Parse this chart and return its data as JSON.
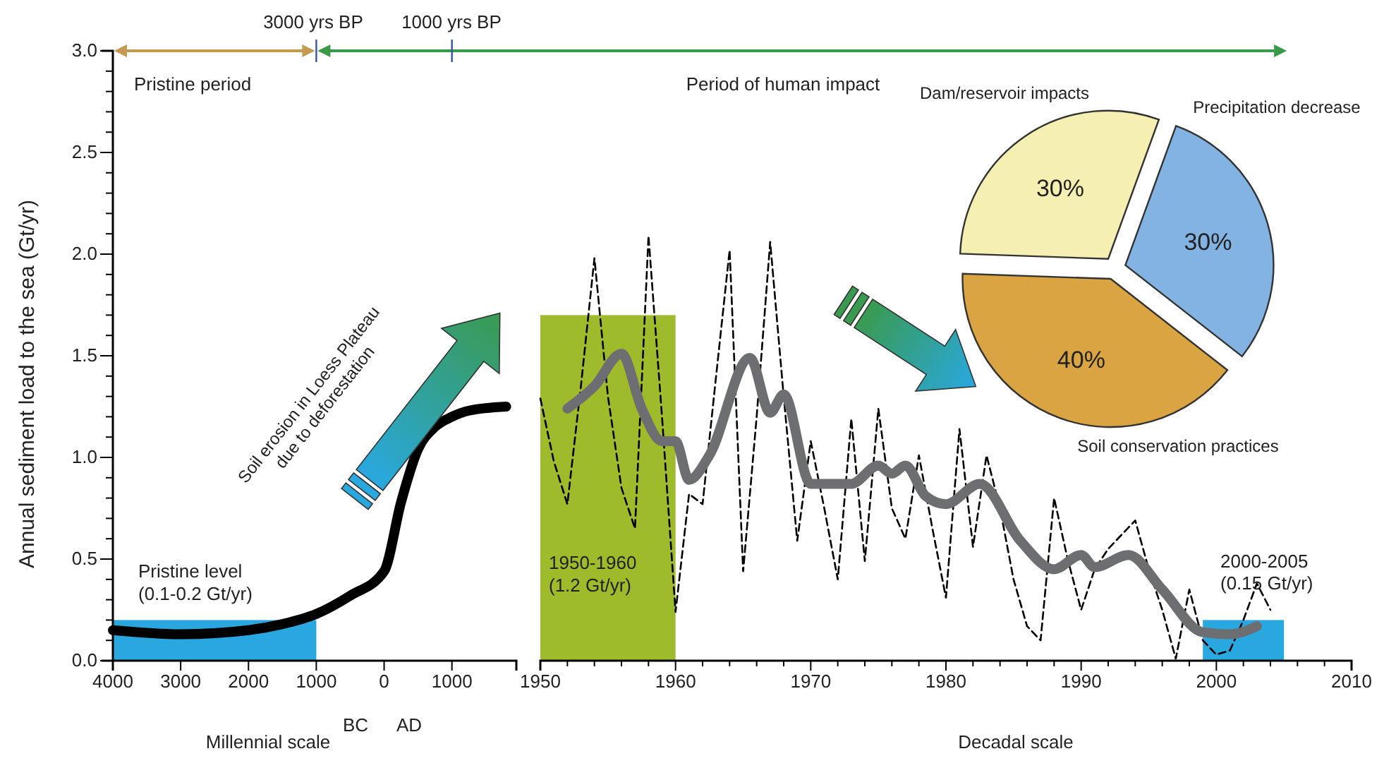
{
  "chart_data": [
    {
      "type": "line",
      "xlabel": "Millennial scale",
      "ylabel": "Annual sediment load to the sea (Gt/yr)",
      "xlim": [
        -4000,
        1950
      ],
      "ylim": [
        0,
        3
      ],
      "xticks": [
        {
          "value": -4000,
          "label": "4000"
        },
        {
          "value": -3000,
          "label": "3000"
        },
        {
          "value": -2000,
          "label": "2000"
        },
        {
          "value": -1000,
          "label": "1000"
        },
        0,
        1000
      ],
      "yticks": [
        {
          "value": 0,
          "label": "0.0"
        },
        {
          "value": 0.1,
          "label": null
        },
        {
          "value": 0.2,
          "label": null
        },
        {
          "value": 0.3,
          "label": null
        },
        {
          "value": 0.4,
          "label": null
        },
        {
          "value": 0.5,
          "label": "0.5"
        },
        {
          "value": 0.6,
          "label": null
        },
        {
          "value": 0.7,
          "label": null
        },
        {
          "value": 0.8,
          "label": null
        },
        {
          "value": 0.9,
          "label": null
        },
        {
          "value": 1,
          "label": "1.0"
        },
        {
          "value": 1.1,
          "label": null
        },
        {
          "value": 1.2,
          "label": null
        },
        {
          "value": 1.3,
          "label": null
        },
        {
          "value": 1.4,
          "label": null
        },
        {
          "value": 1.5,
          "label": "1.5"
        },
        {
          "value": 1.6,
          "label": null
        },
        {
          "value": 1.7,
          "label": null
        },
        {
          "value": 1.8,
          "label": null
        },
        {
          "value": 1.9,
          "label": null
        },
        {
          "value": 2,
          "label": "2.0"
        },
        {
          "value": 2.1,
          "label": null
        },
        {
          "value": 2.2,
          "label": null
        },
        {
          "value": 2.3,
          "label": null
        },
        {
          "value": 2.4,
          "label": null
        },
        {
          "value": 2.5,
          "label": "2.5"
        },
        {
          "value": 2.6,
          "label": null
        },
        {
          "value": 2.7,
          "label": null
        },
        {
          "value": 2.8,
          "label": null
        },
        {
          "value": 2.9,
          "label": null
        },
        {
          "value": 3,
          "label": "3.0"
        }
      ],
      "series": [
        {
          "type": "histogram",
          "color": "#29a8e0",
          "bins": [
            -4000,
            -1000
          ],
          "values": [
            0.2
          ]
        },
        {
          "type": "line",
          "color": "#000000",
          "line_style": "solid",
          "x": [
            -4000,
            -3000,
            -2000,
            -1500,
            -1000,
            -500,
            0,
            250,
            500,
            750,
            1000,
            1250,
            1800
          ],
          "values": [
            0.15,
            0.13,
            0.15,
            0.18,
            0.23,
            0.32,
            0.44,
            0.78,
            1.04,
            1.15,
            1.2,
            1.23,
            1.25
          ]
        }
      ],
      "annotations": [
        "3000 yrs BP",
        "1000 yrs BP",
        "Pristine period",
        "Period of human impact",
        {
          "text": "Pristine level\n(0.1-0.2 Gt/yr)",
          "x": -4000,
          "y": 0.2
        },
        "Soil erosion in Loess Plateau\ndue to deforestation",
        "BC",
        "AD"
      ]
    },
    {
      "type": "line",
      "xlabel": "Decadal scale",
      "xlim": [
        1950,
        2010
      ],
      "ylim": [
        0,
        3
      ],
      "tick_labels": "x",
      "xticks": [
        1950,
        {
          "value": 1952,
          "label": null
        },
        {
          "value": 1954,
          "label": null
        },
        {
          "value": 1956,
          "label": null
        },
        {
          "value": 1958,
          "label": null
        },
        1960,
        {
          "value": 1962,
          "label": null
        },
        {
          "value": 1964,
          "label": null
        },
        {
          "value": 1966,
          "label": null
        },
        {
          "value": 1968,
          "label": null
        },
        1970,
        {
          "value": 1972,
          "label": null
        },
        {
          "value": 1974,
          "label": null
        },
        {
          "value": 1976,
          "label": null
        },
        {
          "value": 1978,
          "label": null
        },
        1980,
        {
          "value": 1982,
          "label": null
        },
        {
          "value": 1984,
          "label": null
        },
        {
          "value": 1986,
          "label": null
        },
        {
          "value": 1988,
          "label": null
        },
        1990,
        {
          "value": 1992,
          "label": null
        },
        {
          "value": 1994,
          "label": null
        },
        {
          "value": 1996,
          "label": null
        },
        {
          "value": 1998,
          "label": null
        },
        2000,
        {
          "value": 2002,
          "label": null
        },
        {
          "value": 2004,
          "label": null
        },
        {
          "value": 2006,
          "label": null
        },
        {
          "value": 2008,
          "label": null
        },
        2010
      ],
      "series": [
        {
          "type": "histogram",
          "color": "#9dbb2a",
          "bins": [
            1950,
            1960
          ],
          "values": [
            1.7
          ]
        },
        {
          "type": "histogram",
          "color": "#29a8e0",
          "bins": [
            1999,
            2005
          ],
          "values": [
            0.2
          ]
        },
        {
          "type": "line",
          "color": "#000000",
          "line_style": "dashed",
          "x": [
            1950,
            1951,
            1952,
            1953,
            1954,
            1955,
            1956,
            1957,
            1958,
            1959,
            1960,
            1961,
            1962,
            1963,
            1964,
            1965,
            1966,
            1967,
            1968,
            1969,
            1970,
            1971,
            1972,
            1973,
            1974,
            1975,
            1976,
            1977,
            1978,
            1979,
            1980,
            1981,
            1982,
            1983,
            1984,
            1985,
            1986,
            1987,
            1988,
            1989,
            1990,
            1991,
            1992,
            1993,
            1994,
            1995,
            1996,
            1997,
            1998,
            1999,
            2000,
            2001,
            2002,
            2003,
            2004
          ],
          "values": [
            1.29,
            0.98,
            0.77,
            1.35,
            1.98,
            1.3,
            0.85,
            0.65,
            2.09,
            1.2,
            0.24,
            0.82,
            0.77,
            1.4,
            2.02,
            0.44,
            1.2,
            2.06,
            1.3,
            0.59,
            1.08,
            0.75,
            0.4,
            1.19,
            0.49,
            1.24,
            0.75,
            0.6,
            1.01,
            0.65,
            0.31,
            1.14,
            0.56,
            1.01,
            0.75,
            0.4,
            0.17,
            0.1,
            0.8,
            0.5,
            0.25,
            0.45,
            0.55,
            0.62,
            0.69,
            0.45,
            0.25,
            0.01,
            0.35,
            0.1,
            0.03,
            0.05,
            0.2,
            0.38,
            0.25
          ]
        },
        {
          "type": "line",
          "color": "#6d6e71",
          "line_style": "solid",
          "x": [
            1952,
            1954,
            1956,
            1957.5,
            1959,
            1960,
            1961,
            1962.5,
            1965.5,
            1967,
            1968,
            1970,
            1973,
            1975,
            1976,
            1977,
            1978.5,
            1980,
            1982.5,
            1985.5,
            1988,
            1990,
            1991,
            1993.5,
            1996,
            1999,
            2001,
            2003
          ],
          "values": [
            1.24,
            1.35,
            1.51,
            1.24,
            1.08,
            1.08,
            0.89,
            1.01,
            1.49,
            1.22,
            1.31,
            0.87,
            0.87,
            0.96,
            0.92,
            0.96,
            0.81,
            0.77,
            0.87,
            0.59,
            0.45,
            0.52,
            0.46,
            0.52,
            0.35,
            0.14,
            0.13,
            0.17
          ]
        }
      ],
      "annotations": [
        {
          "text": "1950-1960\n(1.2 Gt/yr)",
          "x": 1950,
          "y": 0.45
        },
        "2000-2005\n(0.15 Gt/yr)"
      ]
    },
    {
      "type": "pie",
      "categories": [
        "Dam/reservoir impacts",
        "Precipitation decrease",
        "Soil conservation practices"
      ],
      "values": [
        30,
        30,
        40
      ],
      "colors": [
        "#f6efb2",
        "#82b3e3",
        "#d9a441"
      ],
      "value_labels": [
        "30%",
        "30%",
        "40%"
      ]
    }
  ]
}
